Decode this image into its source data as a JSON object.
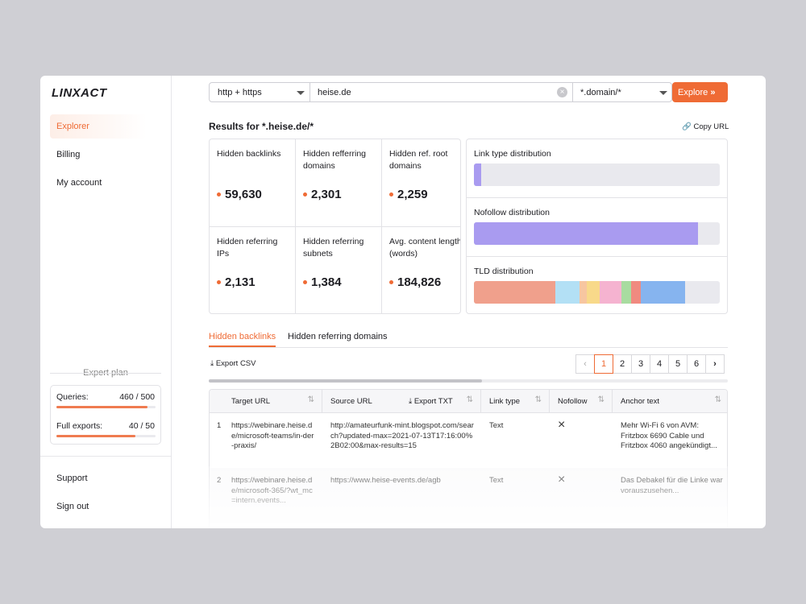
{
  "brand": "LINXACT",
  "nav": [
    "Explorer",
    "Billing",
    "My account"
  ],
  "plan": {
    "title": "Expert plan",
    "items": [
      {
        "label": "Queries:",
        "used": 460,
        "limit": 500,
        "value_label": "460 / 500"
      },
      {
        "label": "Full exports:",
        "used": 40,
        "limit": 50,
        "value_label": "40 / 50"
      }
    ]
  },
  "footer_nav": [
    "Support",
    "Sign out"
  ],
  "search": {
    "protocol": "http + https",
    "query": "heise.de",
    "scope": "*.domain/*",
    "button": "Explore"
  },
  "results_title": "Results for *.heise.de/*",
  "copy_url": "Copy URL",
  "metrics": [
    {
      "label": "Hidden backlinks",
      "value": 59630,
      "value_label": "59,630"
    },
    {
      "label": "Hidden refferring domains",
      "value": 2301,
      "value_label": "2,301"
    },
    {
      "label": "Hidden ref. root domains",
      "value": 2259,
      "value_label": "2,259"
    },
    {
      "label": "Hidden referring IPs",
      "value": 2131,
      "value_label": "2,131"
    },
    {
      "label": "Hidden referring subnets",
      "value": 1384,
      "value_label": "1,384"
    },
    {
      "label": "Avg. content length (words)",
      "value": 184826,
      "value_label": "184,826"
    }
  ],
  "distributions": [
    {
      "title": "Link type distribution",
      "segments": [
        {
          "value": 3,
          "color": "#a99bf0"
        }
      ]
    },
    {
      "title": "Nofollow distribution",
      "segments": [
        {
          "value": 91,
          "color": "#a99bf0"
        }
      ]
    },
    {
      "title": "TLD distribution",
      "segments": [
        {
          "value": 33,
          "color": "#f0a08c"
        },
        {
          "value": 10,
          "color": "#b3e0f5"
        },
        {
          "value": 3,
          "color": "#f7c6a0"
        },
        {
          "value": 5,
          "color": "#f8d98a"
        },
        {
          "value": 9,
          "color": "#f5b3d0"
        },
        {
          "value": 4,
          "color": "#a8dca0"
        },
        {
          "value": 4,
          "color": "#f08a80"
        },
        {
          "value": 18,
          "color": "#86b4ef"
        }
      ]
    }
  ],
  "tabs": [
    "Hidden backlinks",
    "Hidden referring domains"
  ],
  "export_csv": "Export CSV",
  "pages": [
    1,
    2,
    3,
    4,
    5,
    6
  ],
  "table": {
    "columns": [
      "Target URL",
      "Source URL",
      "Link type",
      "Nofollow",
      "Anchor text"
    ],
    "export_txt": "Export TXT",
    "rows": [
      {
        "index": 1,
        "target": "https://webinare.heise.de/microsoft-teams/in-der-praxis/",
        "source": "http://amateurfunk-mint.blogspot.com/search?updated-max=2021-07-13T17:16:00%2B02:00&max-results=15",
        "link_type": "Text",
        "anchor": "Mehr Wi-Fi 6 von AVM: Fritzbox 6690 Cable und Fritzbox 4060 angekündigt..."
      },
      {
        "index": 2,
        "target": "https://webinare.heise.de/microsoft-365/?wt_mc=intern.events...",
        "source": "https://www.heise-events.de/agb",
        "link_type": "Text",
        "anchor": "Das Debakel für die Linke war vorauszusehen..."
      }
    ]
  }
}
